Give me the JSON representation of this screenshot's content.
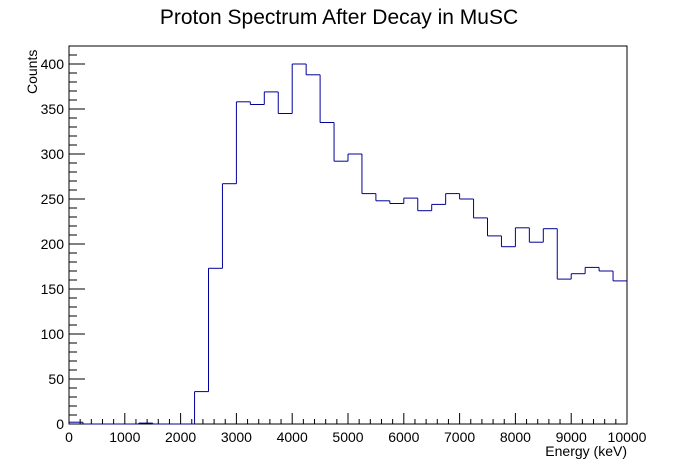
{
  "chart_data": {
    "type": "histogram",
    "title": "Proton Spectrum After Decay in MuSC",
    "xlabel": "Energy (keV)",
    "ylabel": "Counts",
    "xlim": [
      0,
      10000
    ],
    "ylim": [
      0,
      420
    ],
    "bin_width": 250,
    "bin_edges_start": 0,
    "values": [
      2,
      0,
      0,
      0,
      0,
      1,
      0,
      0,
      0,
      36,
      173,
      267,
      358,
      355,
      369,
      345,
      400,
      388,
      335,
      292,
      300,
      256,
      248,
      245,
      251,
      237,
      244,
      256,
      250,
      229,
      209,
      197,
      218,
      202,
      217,
      161,
      167,
      174,
      170,
      159
    ],
    "x_ticks": [
      0,
      1000,
      2000,
      3000,
      4000,
      5000,
      6000,
      7000,
      8000,
      9000,
      10000
    ],
    "y_ticks": [
      0,
      50,
      100,
      150,
      200,
      250,
      300,
      350,
      400
    ],
    "line_color": "#000099",
    "grid": false,
    "legend": "none"
  }
}
